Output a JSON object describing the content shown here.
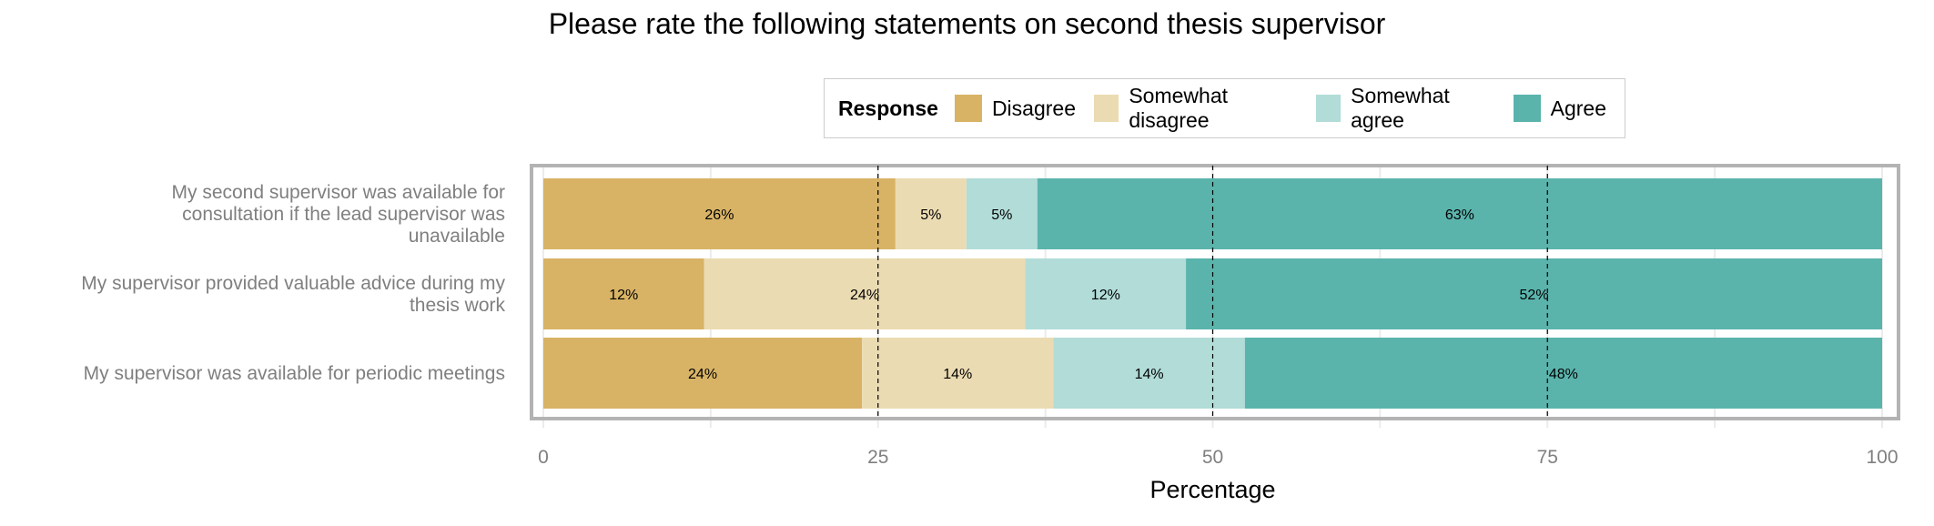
{
  "chart_data": {
    "type": "bar",
    "orientation": "horizontal",
    "stacked": true,
    "title": "Please rate the following statements on second thesis supervisor",
    "xlabel": "Percentage",
    "ylabel": "",
    "xlim": [
      0,
      100
    ],
    "x_ticks": [
      0,
      25,
      50,
      75,
      100
    ],
    "x_tick_labels": [
      "0",
      "25",
      "50",
      "75",
      "100"
    ],
    "reference_lines": [
      25,
      50,
      75
    ],
    "grid": true,
    "legend": {
      "title": "Response",
      "position": "top-center",
      "entries": [
        "Disagree",
        "Somewhat disagree",
        "Somewhat agree",
        "Agree"
      ]
    },
    "categories": [
      "My second supervisor was available for consultation if the lead supervisor was unavailable",
      "My supervisor provided valuable advice during my thesis work",
      "My supervisor was available for periodic meetings"
    ],
    "category_label_lines": [
      [
        "My second supervisor was available for",
        "consultation if the lead supervisor was",
        "unavailable"
      ],
      [
        "My supervisor provided valuable advice during my",
        "thesis work"
      ],
      [
        "My supervisor was available for periodic meetings"
      ]
    ],
    "series": [
      {
        "name": "Disagree",
        "color": "#d8b365",
        "values": [
          26.3,
          12.0,
          23.8
        ],
        "labels": [
          "26%",
          "12%",
          "24%"
        ]
      },
      {
        "name": "Somewhat disagree",
        "color": "#ebdbb2",
        "values": [
          5.3,
          24.0,
          14.3
        ],
        "labels": [
          "5%",
          "24%",
          "14%"
        ]
      },
      {
        "name": "Somewhat agree",
        "color": "#b1dcd8",
        "values": [
          5.3,
          12.0,
          14.3
        ],
        "labels": [
          "5%",
          "12%",
          "14%"
        ]
      },
      {
        "name": "Agree",
        "color": "#5ab4ac",
        "values": [
          63.1,
          52.0,
          47.6
        ],
        "labels": [
          "63%",
          "52%",
          "48%"
        ]
      }
    ]
  }
}
